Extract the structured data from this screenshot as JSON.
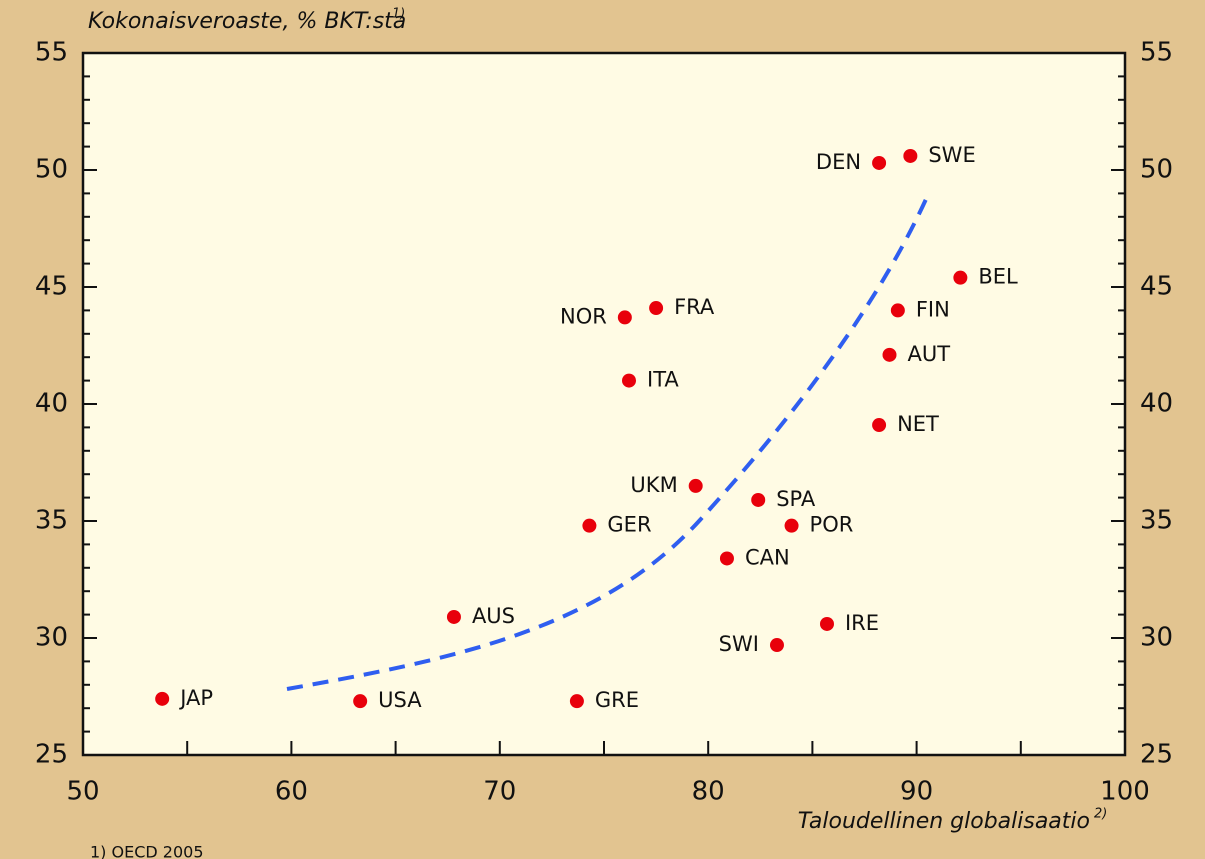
{
  "chart_data": {
    "type": "scatter",
    "title": "Kokonaisveroaste, % BKT:sta",
    "title_note": "1)",
    "x_label": "Taloudellinen globalisaatio",
    "x_label_note": "2)",
    "footnote": "1) OECD 2005",
    "labels": [
      "JAP",
      "USA",
      "GRE",
      "AUS",
      "GER",
      "UKM",
      "SPA",
      "POR",
      "CAN",
      "SWI",
      "IRE",
      "NOR",
      "FRA",
      "ITA",
      "DEN",
      "SWE",
      "BEL",
      "FIN",
      "AUT",
      "NET"
    ],
    "x": [
      53.8,
      63.3,
      73.7,
      67.8,
      74.3,
      79.4,
      82.4,
      84.0,
      80.9,
      83.3,
      85.7,
      76.0,
      77.5,
      76.2,
      88.2,
      89.7,
      92.1,
      89.1,
      88.7,
      88.2
    ],
    "values": [
      27.4,
      27.3,
      27.3,
      30.9,
      34.8,
      36.5,
      35.9,
      34.8,
      33.4,
      29.7,
      30.6,
      43.7,
      44.1,
      41.0,
      50.3,
      50.6,
      45.4,
      44.0,
      42.1,
      39.1
    ],
    "color": "#e8000b",
    "xlim": [
      50,
      100
    ],
    "xticks": [
      50,
      60,
      70,
      80,
      90,
      100
    ],
    "ylim": [
      25,
      55
    ],
    "yticks": [
      25,
      30,
      35,
      40,
      45,
      50,
      55
    ]
  }
}
